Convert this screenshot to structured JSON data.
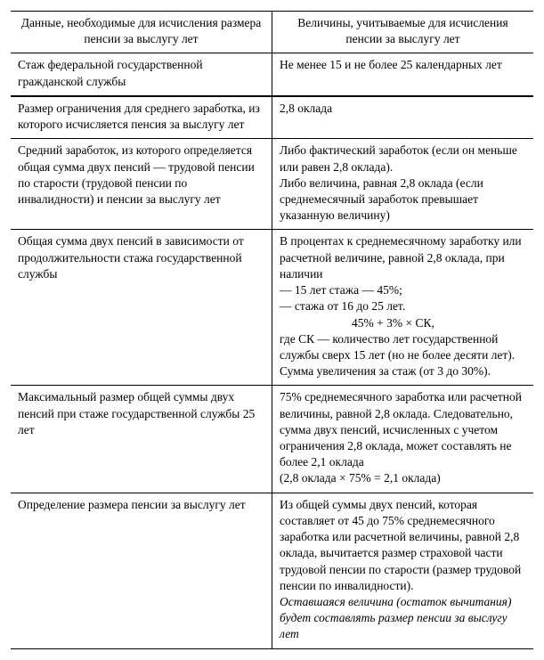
{
  "header": {
    "left": "Данные, необходимые для исчисления размера пенсии за выслугу лет",
    "right": "Величины, учитываемые для исчисления пенсии за выслугу лет"
  },
  "rows": [
    {
      "left": "Стаж федеральной государственной гражданской службы",
      "right": "Не менее 15 и не более 25 календарных лет"
    },
    {
      "left": "Размер ограничения для среднего заработка, из которого исчисляется пенсия за выслугу лет",
      "right": "2,8 оклада"
    },
    {
      "left": "Средний заработок, из которого определяется общая сумма двух пенсий — трудовой пенсии по старости (трудовой пенсии по инвалидности) и пенсии за выслугу лет",
      "right_lines": [
        "Либо фактический заработок (если он меньше или равен 2,8 оклада).",
        "Либо величина, равная 2,8 оклада (если среднемесячный заработок превышает указанную величину)"
      ]
    },
    {
      "left": "Общая сумма двух пенсий в зависимости от продолжительности стажа государственной службы",
      "right_lines_pre": [
        "В процентах к среднемесячному заработку или расчетной величине, равной 2,8 оклада, при наличии",
        "— 15 лет стажа — 45%;",
        "— стажа от 16 до 25 лет."
      ],
      "formula": "45% + 3% × СК,",
      "right_lines_post": [
        "где СК — количество лет государственной службы сверх 15 лет (но не более десяти лет).",
        "Сумма увеличения за стаж (от 3 до 30%)."
      ]
    },
    {
      "left": "Максимальный размер общей суммы двух пенсий при стаже государственной службы 25 лет",
      "right_lines": [
        "75% среднемесячного заработка или расчетной величины, равной 2,8 оклада. Следовательно, сумма двух пенсий, исчисленных с учетом ограничения 2,8 оклада, может составлять не более 2,1 оклада",
        "(2,8 оклада × 75% = 2,1 оклада)"
      ]
    },
    {
      "left": "Определение размера пенсии за выслугу лет",
      "right_lines": [
        "Из общей суммы двух пенсий, которая составляет от 45 до 75% среднемесячного заработка или расчетной величины, равной 2,8 оклада, вычитается размер страховой части трудовой пенсии по старости (размер трудовой пенсии по инвалидности)."
      ],
      "right_italic": "Оставшаяся величина (остаток вычитания) будет составлять размер пенсии за выслугу лет"
    }
  ]
}
